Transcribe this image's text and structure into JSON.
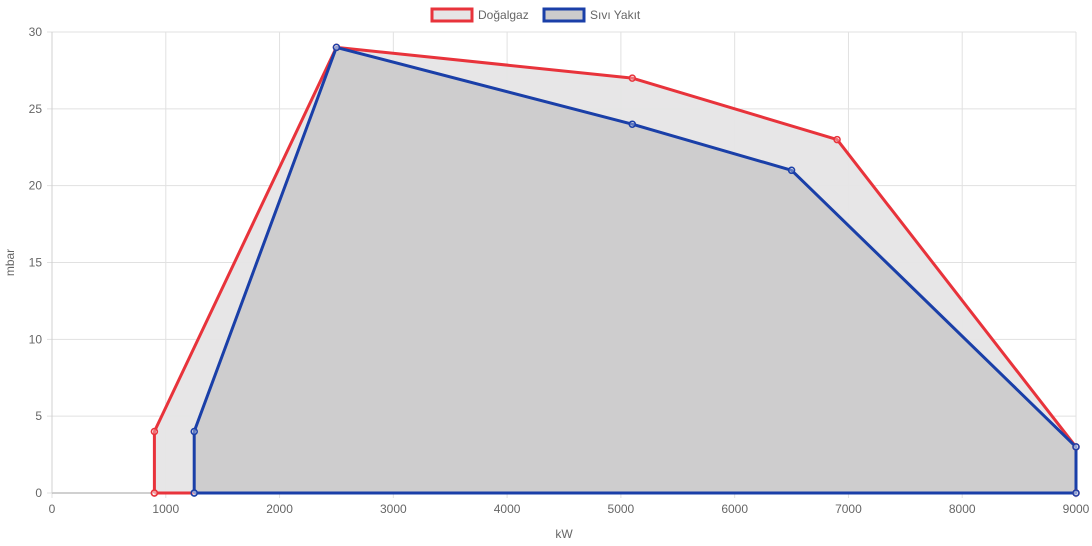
{
  "chart_data": {
    "type": "area",
    "xlabel": "kW",
    "ylabel": "mbar",
    "xlim": [
      0,
      9000
    ],
    "ylim": [
      0,
      30
    ],
    "x_ticks": [
      0,
      1000,
      2000,
      3000,
      4000,
      5000,
      6000,
      7000,
      8000,
      9000
    ],
    "y_ticks": [
      0,
      5,
      10,
      15,
      20,
      25,
      30
    ],
    "grid": true,
    "legend_position": "top-center",
    "series": [
      {
        "name": "Doğalgaz",
        "color": "#e8333b",
        "fill": "#e6e5e6",
        "points": [
          [
            900,
            0
          ],
          [
            900,
            4
          ],
          [
            2500,
            29
          ],
          [
            5100,
            27
          ],
          [
            6900,
            23
          ],
          [
            9000,
            3
          ],
          [
            9000,
            0
          ],
          [
            900,
            0
          ]
        ]
      },
      {
        "name": "Sıvı Yakıt",
        "color": "#1a3fa8",
        "fill": "#cccbcc",
        "points": [
          [
            1250,
            0
          ],
          [
            1250,
            4
          ],
          [
            2500,
            29
          ],
          [
            5100,
            24
          ],
          [
            6500,
            21
          ],
          [
            9000,
            3
          ],
          [
            9000,
            0
          ],
          [
            1250,
            0
          ]
        ]
      }
    ]
  }
}
